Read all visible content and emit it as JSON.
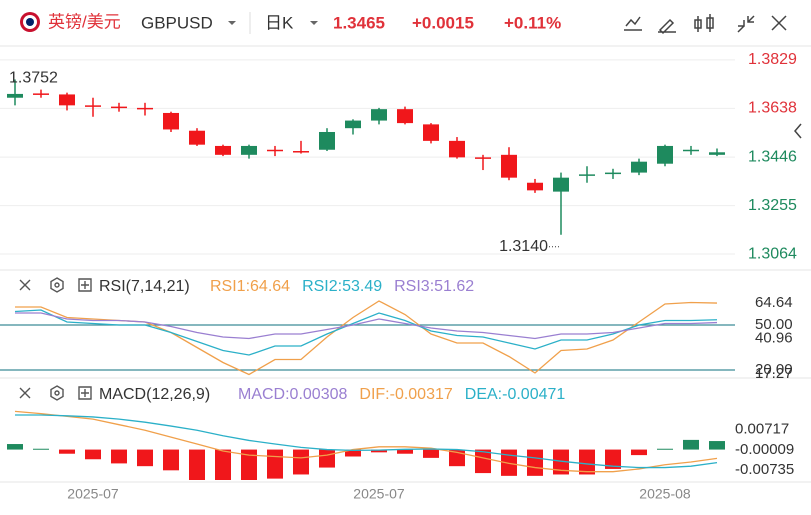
{
  "header": {
    "pair": "英镑/美元",
    "symbol": "GBPUSD",
    "period": "日K",
    "price": "1.3465",
    "change": "+0.0015",
    "change_pct": "+0.11%"
  },
  "chart_data": [
    {
      "type": "candlestick",
      "up_color": "#1e8a5e",
      "down_color": "#f0171b",
      "categories": [
        null,
        null,
        null,
        "2025-07",
        null,
        null,
        null,
        null,
        null,
        null,
        null,
        null,
        null,
        null,
        "2025-07",
        null,
        null,
        null,
        null,
        null,
        null,
        null,
        null,
        null,
        null,
        "2025-08",
        null,
        null
      ],
      "open": [
        1.368,
        1.3697,
        1.3693,
        1.365,
        1.3645,
        1.364,
        1.362,
        1.355,
        1.349,
        1.3455,
        1.3475,
        1.347,
        1.3475,
        1.356,
        1.359,
        1.3635,
        1.3575,
        1.351,
        1.3445,
        1.3455,
        1.3345,
        1.331,
        1.3375,
        1.338,
        1.3385,
        1.342,
        1.347,
        1.3455
      ],
      "high": [
        1.3752,
        1.3712,
        1.37,
        1.368,
        1.366,
        1.366,
        1.3625,
        1.356,
        1.3495,
        1.3495,
        1.349,
        1.351,
        1.356,
        1.3595,
        1.364,
        1.3645,
        1.358,
        1.3525,
        1.3455,
        1.3485,
        1.336,
        1.3385,
        1.341,
        1.34,
        1.344,
        1.3495,
        1.349,
        1.348
      ],
      "low": [
        1.365,
        1.368,
        1.363,
        1.3605,
        1.3625,
        1.361,
        1.3545,
        1.349,
        1.345,
        1.344,
        1.345,
        1.346,
        1.347,
        1.3535,
        1.3575,
        1.3575,
        1.35,
        1.344,
        1.3395,
        1.3355,
        1.3305,
        1.314,
        1.3345,
        1.336,
        1.3375,
        1.341,
        1.3455,
        1.345
      ],
      "close": [
        1.3695,
        1.3693,
        1.365,
        1.3645,
        1.3642,
        1.3635,
        1.3555,
        1.3495,
        1.3455,
        1.349,
        1.3472,
        1.3465,
        1.3545,
        1.359,
        1.3635,
        1.358,
        1.351,
        1.3445,
        1.344,
        1.3365,
        1.3315,
        1.3365,
        1.3378,
        1.3385,
        1.3428,
        1.349,
        1.3475,
        1.3465
      ],
      "ylim": [
        1.3009,
        1.3876
      ],
      "yticks": [
        1.3829,
        1.3638,
        1.3446,
        1.3255,
        1.3064
      ],
      "ytick_colors": [
        "#e0323a",
        "#e0323a",
        "#1e8a5e",
        "#1e8a5e",
        "#1e8a5e"
      ],
      "annotations": [
        {
          "text": "1.3752",
          "value": 1.3752,
          "index": 0
        },
        {
          "text": "1.3140",
          "value": 1.314,
          "index": 21
        }
      ],
      "grid": true
    },
    {
      "type": "line",
      "title": "RSI(7,14,21)",
      "ylim": [
        16,
        68
      ],
      "yticks": [
        64.64,
        {
          "value": 50,
          "label": "50.00"
        },
        40.96,
        17.27,
        {
          "value": 20,
          "label": "20.00"
        }
      ],
      "levels": [
        50,
        20
      ],
      "series": [
        {
          "name": "RSI1:64.64",
          "color": "#f0a04b",
          "values": [
            62,
            62,
            55,
            54,
            53,
            52,
            45,
            35,
            25,
            17,
            27,
            27,
            42,
            55,
            66,
            57,
            44,
            38,
            38,
            29,
            18,
            33,
            34,
            40,
            52,
            64,
            65,
            64.64
          ]
        },
        {
          "name": "RSI2:53.49",
          "color": "#2bb0c8",
          "values": [
            59,
            60,
            52,
            51,
            50,
            50,
            45,
            39,
            33,
            30,
            36,
            36,
            44,
            51,
            58,
            53,
            46,
            43,
            42,
            38,
            34,
            40,
            40,
            44,
            50,
            53,
            53,
            53.49
          ]
        },
        {
          "name": "RSI3:51.62",
          "color": "#9a7fd1",
          "values": [
            58,
            58,
            54,
            53,
            53,
            52,
            49,
            45,
            42,
            41,
            44,
            44,
            47,
            50,
            54,
            51,
            48,
            46,
            45,
            43,
            41,
            44,
            44,
            45,
            48,
            51,
            51,
            51.62
          ]
        }
      ]
    },
    {
      "type": "macd",
      "title": "MACD(12,26,9)",
      "ylim": [
        -0.011,
        0.0172
      ],
      "yticks": [
        0.00717,
        -9e-05,
        -0.00735
      ],
      "series": [
        {
          "name": "MACD:0.00308",
          "color": "#9a7fd1",
          "up_color": "#1e8a5e",
          "down_color": "#f0171b",
          "values": [
            0.002,
            0.0003,
            -0.0015,
            -0.0035,
            -0.005,
            -0.006,
            -0.0075,
            -0.011,
            -0.011,
            -0.011,
            -0.0105,
            -0.009,
            -0.0065,
            -0.0025,
            -0.001,
            -0.0015,
            -0.003,
            -0.006,
            -0.0085,
            -0.0095,
            -0.0095,
            -0.009,
            -0.009,
            -0.007,
            -0.002,
            0.0003,
            0.0035,
            0.00308
          ]
        },
        {
          "name": "DIF:-0.00317",
          "color": "#f0a04b",
          "values": [
            0.0138,
            0.013,
            0.012,
            0.011,
            0.009,
            0.007,
            0.0045,
            0.002,
            -0.0005,
            -0.002,
            -0.0025,
            -0.003,
            -0.002,
            0.0,
            0.001,
            0.001,
            0.0005,
            -0.001,
            -0.003,
            -0.005,
            -0.0065,
            -0.0075,
            -0.008,
            -0.008,
            -0.007,
            -0.0055,
            -0.0045,
            -0.00317
          ]
        },
        {
          "name": "DEA:-0.00471",
          "color": "#2bb0c8",
          "values": [
            0.0125,
            0.0125,
            0.0122,
            0.0118,
            0.011,
            0.0099,
            0.0085,
            0.007,
            0.005,
            0.0033,
            0.002,
            0.0008,
            0.0,
            -0.0003,
            -0.0002,
            0.0001,
            0.0002,
            0.0,
            -0.0008,
            -0.002,
            -0.003,
            -0.0042,
            -0.0052,
            -0.006,
            -0.0065,
            -0.0065,
            -0.006,
            -0.00471
          ]
        }
      ]
    }
  ]
}
